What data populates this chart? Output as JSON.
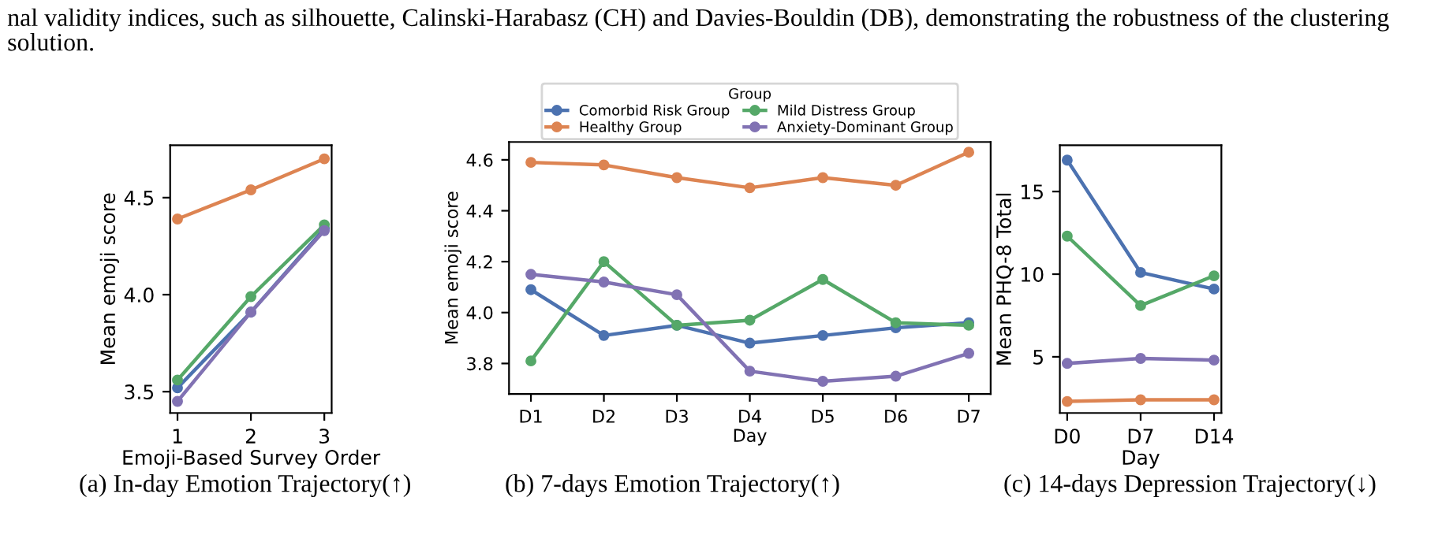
{
  "chart_data": [
    {
      "type": "other",
      "annotations": [
        "nal validity indices, such as silhouette, Calinski-Harabasz (CH) and Davies-Bouldin (DB), demonstrating the robustness of the clustering solution."
      ]
    },
    {
      "type": "line",
      "x": [
        1,
        2,
        3
      ],
      "xlim": [
        0.9,
        3.1
      ],
      "xticks": [
        1,
        2,
        3
      ],
      "ylim": [
        3.39,
        4.77
      ],
      "yticks": [
        3.5,
        {
          "value": 4.0,
          "label": "4.0"
        },
        4.5
      ],
      "xlabel": "Emoji-Based Survey Order",
      "ylabel": "Mean emoji score",
      "marker": "circle",
      "grid": false,
      "legend": false,
      "annotations": [
        "(a) In-day Emotion Trajectory(↑)"
      ],
      "series": [
        {
          "color": "#4c72b0",
          "values": [
            3.52,
            3.91,
            4.34
          ]
        },
        {
          "color": "#dd8452",
          "values": [
            4.39,
            4.54,
            4.7
          ]
        },
        {
          "color": "#55a868",
          "values": [
            3.56,
            3.99,
            4.36
          ]
        },
        {
          "color": "#8172b3",
          "values": [
            3.45,
            3.91,
            4.33
          ]
        }
      ]
    },
    {
      "type": "line",
      "categories": [
        "D1",
        "D2",
        "D3",
        "D4",
        "D5",
        "D6",
        "D7"
      ],
      "ylim": [
        3.68,
        4.67
      ],
      "yticks": [
        3.8,
        {
          "value": 4.0,
          "label": "4.0"
        },
        4.2,
        4.4,
        4.6
      ],
      "xlabel": "Day",
      "ylabel": "Mean emoji score",
      "marker": "circle",
      "grid": false,
      "legend": "top",
      "legend_title": "Group",
      "annotations": [
        "(b) 7-days Emotion Trajectory(↑)"
      ],
      "series": [
        {
          "name": "Comorbid Risk Group",
          "color": "#4c72b0",
          "values": [
            4.09,
            3.91,
            3.95,
            3.88,
            3.91,
            3.94,
            3.96
          ]
        },
        {
          "name": "Healthy Group",
          "color": "#dd8452",
          "values": [
            4.59,
            4.58,
            4.53,
            4.49,
            4.53,
            4.5,
            4.63
          ]
        },
        {
          "name": "Mild Distress Group",
          "color": "#55a868",
          "values": [
            3.81,
            4.2,
            3.95,
            3.97,
            4.13,
            3.96,
            3.95
          ]
        },
        {
          "name": "Anxiety-Dominant Group",
          "color": "#8172b3",
          "values": [
            4.15,
            4.12,
            4.07,
            3.77,
            3.73,
            3.75,
            3.84
          ]
        }
      ]
    },
    {
      "type": "line",
      "categories": [
        "D0",
        "D7",
        "D14"
      ],
      "ylim": [
        1.6,
        17.8
      ],
      "yticks": [
        5,
        10,
        15
      ],
      "xlabel": "Day",
      "ylabel": "Mean PHQ-8 Total",
      "marker": "circle",
      "grid": false,
      "legend": false,
      "annotations": [
        "(c) 14-days Depression Trajectory(↓)"
      ],
      "series": [
        {
          "color": "#4c72b0",
          "values": [
            16.9,
            10.1,
            9.1
          ]
        },
        {
          "color": "#dd8452",
          "values": [
            2.3,
            2.4,
            2.4
          ]
        },
        {
          "color": "#55a868",
          "values": [
            12.3,
            8.1,
            9.9
          ]
        },
        {
          "color": "#8172b3",
          "values": [
            4.6,
            4.9,
            4.8
          ]
        }
      ]
    }
  ]
}
